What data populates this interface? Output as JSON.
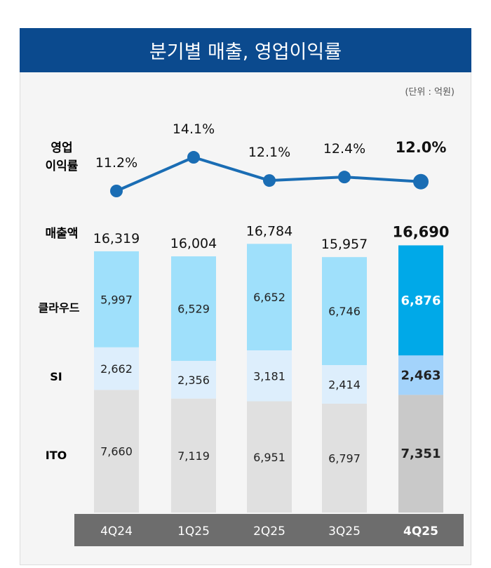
{
  "chart_data": {
    "type": "bar",
    "title": "분기별 매출, 영업이익률",
    "unit_note": "(단위 : 억원)",
    "categories": [
      "4Q24",
      "1Q25",
      "2Q25",
      "3Q25",
      "4Q25"
    ],
    "highlight_category": "4Q25",
    "row_labels": {
      "margin_line1": "영업",
      "margin_line2": "이익률",
      "revenue": "매출액",
      "cloud": "클라우드",
      "si": "SI",
      "ito": "ITO"
    },
    "operating_margin": {
      "values": [
        11.2,
        14.1,
        12.1,
        12.4,
        12.0
      ],
      "labels": [
        "11.2%",
        "14.1%",
        "12.1%",
        "12.4%",
        "12.0%"
      ]
    },
    "revenue_total": {
      "values": [
        16319,
        16004,
        16784,
        15957,
        16690
      ],
      "labels": [
        "16,319",
        "16,004",
        "16,784",
        "15,957",
        "16,690"
      ]
    },
    "series": [
      {
        "name": "ITO",
        "values": [
          7660,
          7119,
          6951,
          6797,
          7351
        ],
        "labels": [
          "7,660",
          "7,119",
          "6,951",
          "6,797",
          "7,351"
        ],
        "color": "#e0e0e0",
        "highlight_color": "#c9c9c9"
      },
      {
        "name": "SI",
        "values": [
          2662,
          2356,
          3181,
          2414,
          2463
        ],
        "labels": [
          "2,662",
          "2,356",
          "3,181",
          "2,414",
          "2,463"
        ],
        "color": "#ddeefc",
        "highlight_color": "#a3d3fb"
      },
      {
        "name": "클라우드",
        "values": [
          5997,
          6529,
          6652,
          6746,
          6876
        ],
        "labels": [
          "5,997",
          "6,529",
          "6,652",
          "6,746",
          "6,876"
        ],
        "color": "#9fe0fb",
        "highlight_color": "#00a9e8"
      }
    ],
    "line_color": "#1a6db4"
  }
}
